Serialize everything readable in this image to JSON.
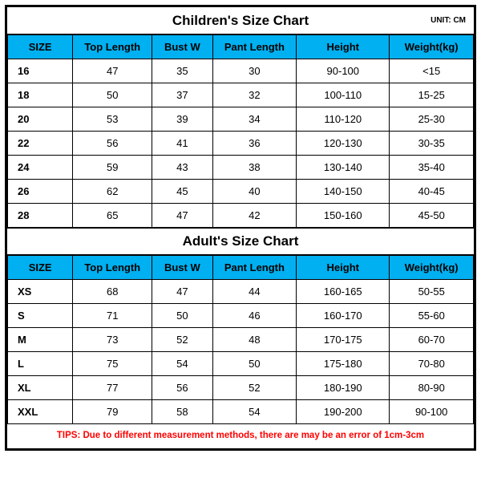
{
  "colors": {
    "header_bg": "#00b0f0",
    "border": "#000000",
    "tips": "#ff0000",
    "background": "#ffffff"
  },
  "children": {
    "title": "Children's Size Chart",
    "unit": "UNIT: CM",
    "columns": [
      "SIZE",
      "Top Length",
      "Bust W",
      "Pant Length",
      "Height",
      "Weight(kg)"
    ],
    "rows": [
      [
        "16",
        "47",
        "35",
        "30",
        "90-100",
        "<15"
      ],
      [
        "18",
        "50",
        "37",
        "32",
        "100-110",
        "15-25"
      ],
      [
        "20",
        "53",
        "39",
        "34",
        "110-120",
        "25-30"
      ],
      [
        "22",
        "56",
        "41",
        "36",
        "120-130",
        "30-35"
      ],
      [
        "24",
        "59",
        "43",
        "38",
        "130-140",
        "35-40"
      ],
      [
        "26",
        "62",
        "45",
        "40",
        "140-150",
        "40-45"
      ],
      [
        "28",
        "65",
        "47",
        "42",
        "150-160",
        "45-50"
      ]
    ]
  },
  "adult": {
    "title": "Adult's Size Chart",
    "columns": [
      "SIZE",
      "Top Length",
      "Bust W",
      "Pant Length",
      "Height",
      "Weight(kg)"
    ],
    "rows": [
      [
        "XS",
        "68",
        "47",
        "44",
        "160-165",
        "50-55"
      ],
      [
        "S",
        "71",
        "50",
        "46",
        "160-170",
        "55-60"
      ],
      [
        "M",
        "73",
        "52",
        "48",
        "170-175",
        "60-70"
      ],
      [
        "L",
        "75",
        "54",
        "50",
        "175-180",
        "70-80"
      ],
      [
        "XL",
        "77",
        "56",
        "52",
        "180-190",
        "80-90"
      ],
      [
        "XXL",
        "79",
        "58",
        "54",
        "190-200",
        "90-100"
      ]
    ]
  },
  "tips": "TIPS: Due to different measurement methods, there are may be an error of 1cm-3cm"
}
